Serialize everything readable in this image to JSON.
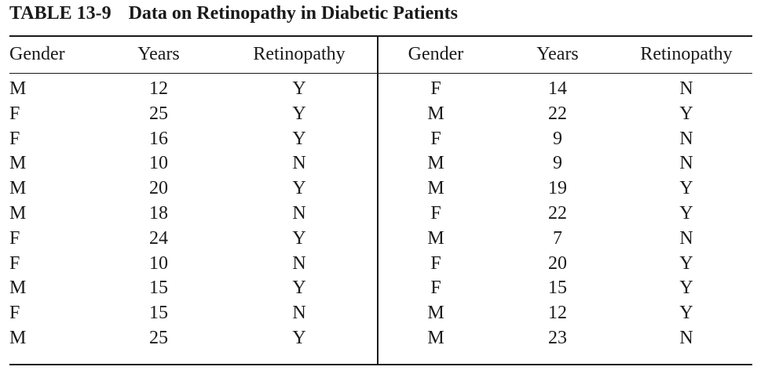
{
  "caption": {
    "number": "TABLE 13-9",
    "title": "Data on Retinopathy in Diabetic Patients"
  },
  "headers": [
    "Gender",
    "Years",
    "Retinopathy",
    "Gender",
    "Years",
    "Retinopathy"
  ],
  "rows": [
    [
      "M",
      "12",
      "Y",
      "F",
      "14",
      "N"
    ],
    [
      "F",
      "25",
      "Y",
      "M",
      "22",
      "Y"
    ],
    [
      "F",
      "16",
      "Y",
      "F",
      "9",
      "N"
    ],
    [
      "M",
      "10",
      "N",
      "M",
      "9",
      "N"
    ],
    [
      "M",
      "20",
      "Y",
      "M",
      "19",
      "Y"
    ],
    [
      "M",
      "18",
      "N",
      "F",
      "22",
      "Y"
    ],
    [
      "F",
      "24",
      "Y",
      "M",
      "7",
      "N"
    ],
    [
      "F",
      "10",
      "N",
      "F",
      "20",
      "Y"
    ],
    [
      "M",
      "15",
      "Y",
      "F",
      "15",
      "Y"
    ],
    [
      "F",
      "15",
      "N",
      "M",
      "12",
      "Y"
    ],
    [
      "M",
      "25",
      "Y",
      "M",
      "23",
      "N"
    ]
  ]
}
